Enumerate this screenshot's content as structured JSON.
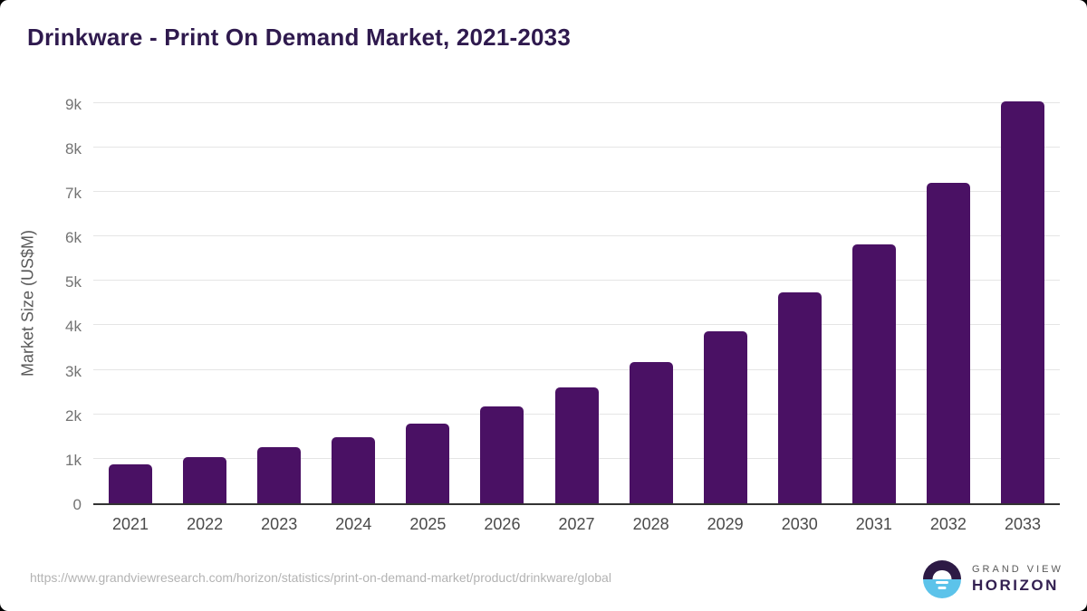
{
  "chart": {
    "title": "Drinkware - Print On Demand Market, 2021-2033",
    "ylabel": "Market Size (US$M)"
  },
  "chart_data": {
    "type": "bar",
    "title": "Drinkware - Print On Demand Market, 2021-2033",
    "xlabel": "",
    "ylabel": "Market Size (US$M)",
    "categories": [
      "2021",
      "2022",
      "2023",
      "2024",
      "2025",
      "2026",
      "2027",
      "2028",
      "2029",
      "2030",
      "2031",
      "2032",
      "2033"
    ],
    "values": [
      885,
      1050,
      1265,
      1500,
      1805,
      2180,
      2620,
      3180,
      3890,
      4760,
      5850,
      7230,
      9070
    ],
    "ylim": [
      0,
      9075
    ],
    "ytick_values": [
      0,
      1000,
      2000,
      3000,
      4000,
      5000,
      6000,
      7000,
      8000,
      9000
    ],
    "ytick_labels": [
      "0",
      "1k",
      "2k",
      "3k",
      "4k",
      "5k",
      "6k",
      "7k",
      "8k",
      "9k"
    ],
    "grid": true,
    "legend": "none",
    "bar_color": "#4a1164"
  },
  "colors": {
    "title": "#2f1a4e",
    "bar": "#4a1164",
    "gridline": "#e5e5e5",
    "axis_line": "#333333",
    "y_tick": "#737373",
    "x_tick": "#4a4a4a",
    "y_title": "#595959",
    "url_text": "#b3b3b3",
    "logo_purple": "#2d1a45",
    "logo_blue": "#5cc3ea"
  },
  "footer": {
    "source_url": "https://www.grandviewresearch.com/horizon/statistics/print-on-demand-market/product/drinkware/global",
    "logo": {
      "top": "GRAND VIEW",
      "bottom": "HORIZON"
    }
  }
}
